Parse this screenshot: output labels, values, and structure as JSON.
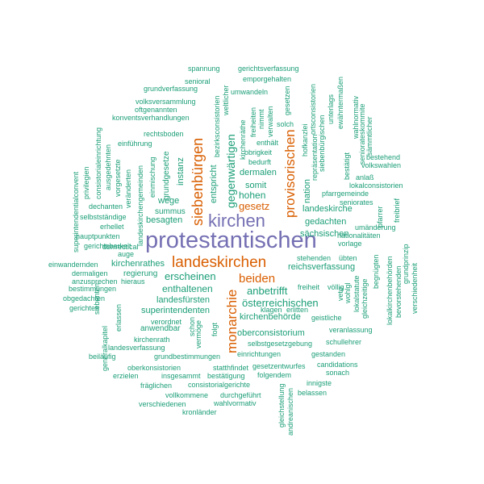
{
  "colors": {
    "background": "#ffffff",
    "purple": "#7570b3",
    "orange": "#d95f02",
    "teal": "#1b9e77"
  },
  "words": [
    {
      "text": "protestantischen",
      "color": "purple"
    },
    {
      "text": "kirchen",
      "color": "purple"
    },
    {
      "text": "landeskirchen",
      "color": "orange"
    },
    {
      "text": "siebenbürgen",
      "color": "orange"
    },
    {
      "text": "provisorischen",
      "color": "orange"
    },
    {
      "text": "monarchie",
      "color": "orange"
    },
    {
      "text": "beiden",
      "color": "orange"
    },
    {
      "text": "gesetz",
      "color": "orange"
    },
    {
      "text": "gegenwärtigen",
      "color": "teal"
    },
    {
      "text": "österreichischen",
      "color": "teal"
    },
    {
      "text": "anbetrifft",
      "color": "teal"
    },
    {
      "text": "erscheinen",
      "color": "teal"
    },
    {
      "text": "enthaltenen",
      "color": "teal"
    },
    {
      "text": "hohen",
      "color": "teal"
    },
    {
      "text": "dermalen",
      "color": "teal"
    },
    {
      "text": "somit",
      "color": "teal"
    },
    {
      "text": "landesfürsten",
      "color": "teal"
    },
    {
      "text": "superintendenten",
      "color": "teal"
    },
    {
      "text": "kirchenrathes",
      "color": "teal"
    },
    {
      "text": "kirchenbehörde",
      "color": "teal"
    },
    {
      "text": "oberconsistorium",
      "color": "teal"
    },
    {
      "text": "reichsverfassung",
      "color": "teal"
    },
    {
      "text": "sächsischen",
      "color": "teal"
    },
    {
      "text": "landeskirche",
      "color": "teal"
    },
    {
      "text": "gedachten",
      "color": "teal"
    },
    {
      "text": "besagten",
      "color": "teal"
    },
    {
      "text": "wege",
      "color": "teal"
    },
    {
      "text": "summus",
      "color": "teal"
    },
    {
      "text": "instanz",
      "color": "teal"
    },
    {
      "text": "entspricht",
      "color": "teal"
    },
    {
      "text": "nation",
      "color": "teal"
    },
    {
      "text": "regierung",
      "color": "teal"
    },
    {
      "text": "landeskirchengemeinden",
      "color": "teal"
    },
    {
      "text": "grundgesetze",
      "color": "teal"
    },
    {
      "text": "anwendbar",
      "color": "teal"
    },
    {
      "text": "vermöge",
      "color": "teal"
    },
    {
      "text": "kirchenrath",
      "color": "teal"
    },
    {
      "text": "landesverfassung",
      "color": "teal"
    },
    {
      "text": "grundbestimmungen",
      "color": "teal"
    },
    {
      "text": "selbstgesetzgebung",
      "color": "teal"
    },
    {
      "text": "einrichtungen",
      "color": "teal"
    },
    {
      "text": "geistliche",
      "color": "teal"
    },
    {
      "text": "veranlassung",
      "color": "teal"
    },
    {
      "text": "schullehrer",
      "color": "teal"
    },
    {
      "text": "gestanden",
      "color": "teal"
    },
    {
      "text": "candidations",
      "color": "teal"
    },
    {
      "text": "sonach",
      "color": "teal"
    },
    {
      "text": "innigste",
      "color": "teal"
    },
    {
      "text": "belassen",
      "color": "teal"
    },
    {
      "text": "gesetzentwurfes",
      "color": "teal"
    },
    {
      "text": "folgendem",
      "color": "teal"
    },
    {
      "text": "statthfindet",
      "color": "teal"
    },
    {
      "text": "oberkonsistorien",
      "color": "teal"
    },
    {
      "text": "insgesammt",
      "color": "teal"
    },
    {
      "text": "bestätigung",
      "color": "teal"
    },
    {
      "text": "fräglichen",
      "color": "teal"
    },
    {
      "text": "consistorialgerichte",
      "color": "teal"
    },
    {
      "text": "vollkommene",
      "color": "teal"
    },
    {
      "text": "durchgeführt",
      "color": "teal"
    },
    {
      "text": "verschiedenen",
      "color": "teal"
    },
    {
      "text": "wahlvormativ",
      "color": "teal"
    },
    {
      "text": "kronländer",
      "color": "teal"
    },
    {
      "text": "erzielen",
      "color": "teal"
    },
    {
      "text": "beiläufig",
      "color": "teal"
    },
    {
      "text": "generalkapitel",
      "color": "teal"
    },
    {
      "text": "erlassen",
      "color": "teal"
    },
    {
      "text": "verordnet",
      "color": "teal"
    },
    {
      "text": "schon",
      "color": "teal"
    },
    {
      "text": "folgt",
      "color": "teal"
    },
    {
      "text": "gerichten",
      "color": "teal"
    },
    {
      "text": "obgedachten",
      "color": "teal"
    },
    {
      "text": "bestimmungen",
      "color": "teal"
    },
    {
      "text": "anzusprechen",
      "color": "teal"
    },
    {
      "text": "hieraus",
      "color": "teal"
    },
    {
      "text": "dermaligen",
      "color": "teal"
    },
    {
      "text": "einwandernden",
      "color": "teal"
    },
    {
      "text": "siebenten",
      "color": "teal"
    },
    {
      "text": "dorrrectical",
      "color": "teal"
    },
    {
      "text": "auge",
      "color": "teal"
    },
    {
      "text": "gerichtsbarkeit",
      "color": "teal"
    },
    {
      "text": "hauptpunkten",
      "color": "teal"
    },
    {
      "text": "erhellet",
      "color": "teal"
    },
    {
      "text": "selbstständige",
      "color": "teal"
    },
    {
      "text": "dechanten",
      "color": "teal"
    },
    {
      "text": "superintendentialconvent",
      "color": "teal"
    },
    {
      "text": "privilegien",
      "color": "teal"
    },
    {
      "text": "consistorialeinrichtung",
      "color": "teal"
    },
    {
      "text": "ausgedehnten",
      "color": "teal"
    },
    {
      "text": "vorgesetzte",
      "color": "teal"
    },
    {
      "text": "veränderten",
      "color": "teal"
    },
    {
      "text": "einmischung",
      "color": "teal"
    },
    {
      "text": "einführung",
      "color": "teal"
    },
    {
      "text": "rechtsboden",
      "color": "teal"
    },
    {
      "text": "konventsverhandlungen",
      "color": "teal"
    },
    {
      "text": "oftgenannten",
      "color": "teal"
    },
    {
      "text": "volksversammlung",
      "color": "teal"
    },
    {
      "text": "grundverfassung",
      "color": "teal"
    },
    {
      "text": "senioral",
      "color": "teal"
    },
    {
      "text": "spannung",
      "color": "teal"
    },
    {
      "text": "gerichtsverfassung",
      "color": "teal"
    },
    {
      "text": "emporgehalten",
      "color": "teal"
    },
    {
      "text": "umwandeln",
      "color": "teal"
    },
    {
      "text": "bezirksconsistorien",
      "color": "teal"
    },
    {
      "text": "weltlicher",
      "color": "teal"
    },
    {
      "text": "kirchenräthe",
      "color": "teal"
    },
    {
      "text": "freiheiten",
      "color": "teal"
    },
    {
      "text": "nimmt",
      "color": "teal"
    },
    {
      "text": "verwalten",
      "color": "teal"
    },
    {
      "text": "gesetzen",
      "color": "teal"
    },
    {
      "text": "solch",
      "color": "teal"
    },
    {
      "text": "obrigkeit",
      "color": "teal"
    },
    {
      "text": "enthält",
      "color": "teal"
    },
    {
      "text": "bedurft",
      "color": "teal"
    },
    {
      "text": "hofkanzlei",
      "color": "teal"
    },
    {
      "text": "ortsconsistorien",
      "color": "teal"
    },
    {
      "text": "siebenbürgischen",
      "color": "teal"
    },
    {
      "text": "repräsentation",
      "color": "teal"
    },
    {
      "text": "unterlags",
      "color": "teal"
    },
    {
      "text": "bestätigt",
      "color": "teal"
    },
    {
      "text": "ewähntermaßen",
      "color": "teal"
    },
    {
      "text": "wahlnormativ",
      "color": "teal"
    },
    {
      "text": "seniorateskommite",
      "color": "teal"
    },
    {
      "text": "sämmtlicher",
      "color": "teal"
    },
    {
      "text": "bestehend",
      "color": "teal"
    },
    {
      "text": "volkswahlen",
      "color": "teal"
    },
    {
      "text": "anlaß",
      "color": "teal"
    },
    {
      "text": "lokalconsistorien",
      "color": "teal"
    },
    {
      "text": "pfarrgemeinde",
      "color": "teal"
    },
    {
      "text": "seniorates",
      "color": "teal"
    },
    {
      "text": "nationalitäten",
      "color": "teal"
    },
    {
      "text": "vorlage",
      "color": "teal"
    },
    {
      "text": "pfarrer",
      "color": "teal"
    },
    {
      "text": "freibrief",
      "color": "teal"
    },
    {
      "text": "umänderung",
      "color": "teal"
    },
    {
      "text": "stehenden",
      "color": "teal"
    },
    {
      "text": "übten",
      "color": "teal"
    },
    {
      "text": "begnügten",
      "color": "teal"
    },
    {
      "text": "grundprinzip",
      "color": "teal"
    },
    {
      "text": "lokalkirchenbehörden",
      "color": "teal"
    },
    {
      "text": "bevorstehenden",
      "color": "teal"
    },
    {
      "text": "verschiedenheit",
      "color": "teal"
    },
    {
      "text": "klagen",
      "color": "teal"
    },
    {
      "text": "erlitten",
      "color": "teal"
    },
    {
      "text": "freiheit",
      "color": "teal"
    },
    {
      "text": "völlig",
      "color": "teal"
    },
    {
      "text": "wohlgl",
      "color": "teal"
    },
    {
      "text": "lokalstatute",
      "color": "teal"
    },
    {
      "text": "gleichzeitige",
      "color": "teal"
    },
    {
      "text": "gleichstellung",
      "color": "teal"
    },
    {
      "text": "andreanischen",
      "color": "teal"
    },
    {
      "text": "veto",
      "color": "teal"
    }
  ]
}
